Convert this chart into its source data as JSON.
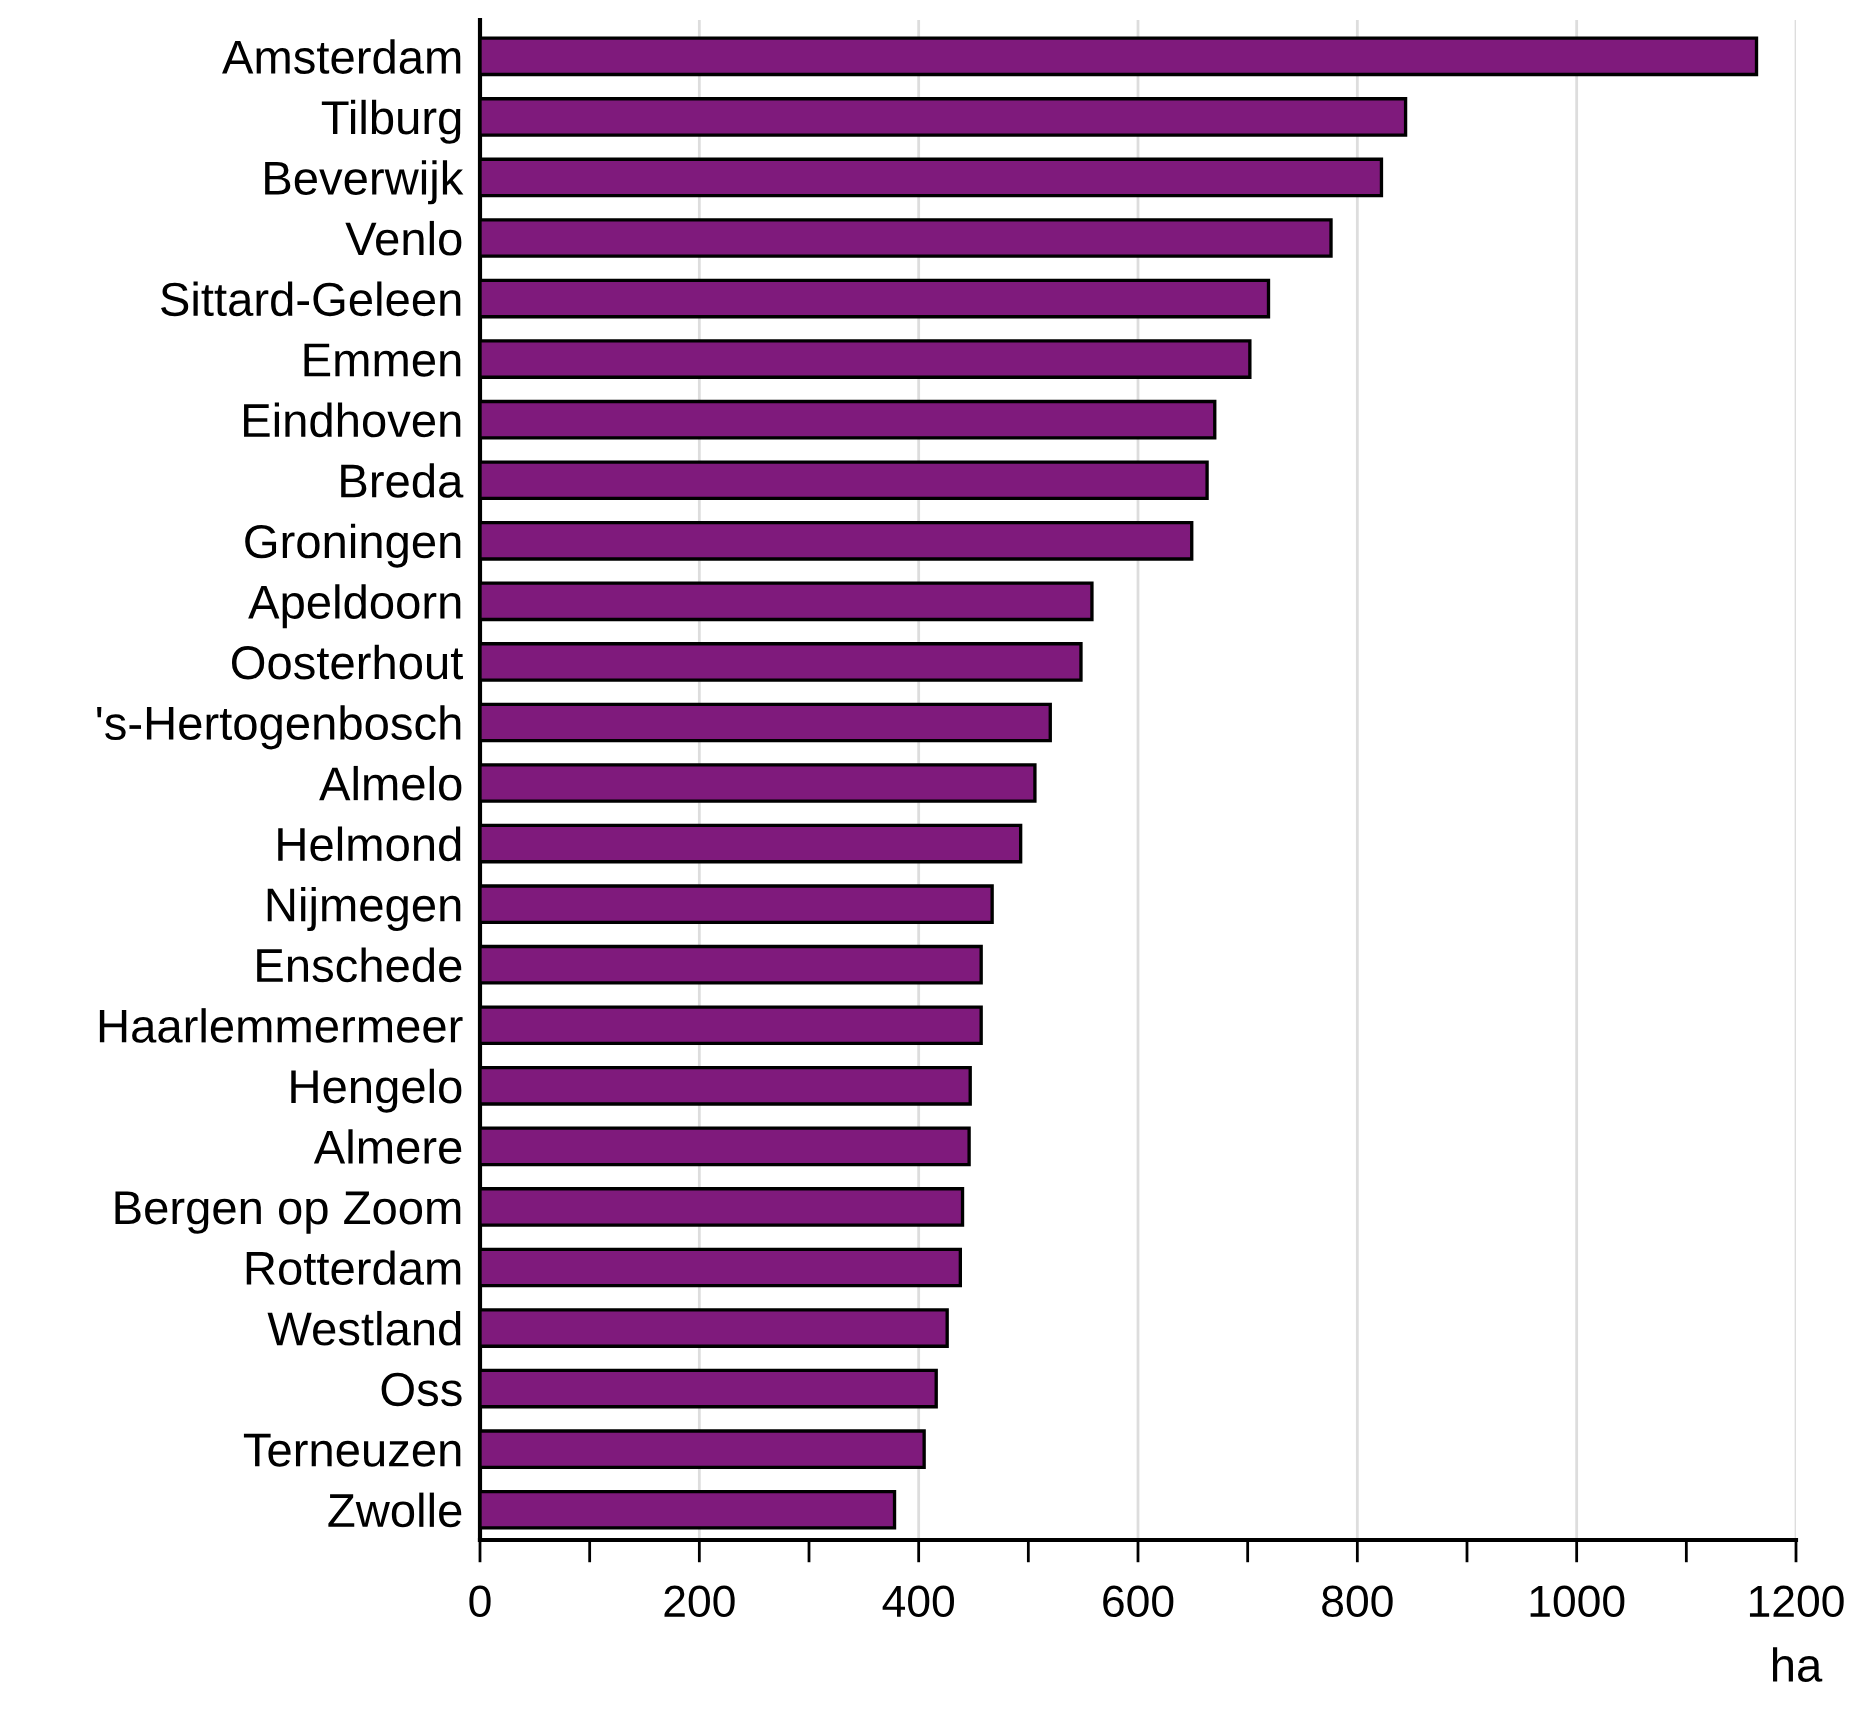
{
  "chart_data": {
    "type": "bar",
    "orientation": "horizontal",
    "xlabel": "ha",
    "categories": [
      "Amsterdam",
      "Tilburg",
      "Beverwijk",
      "Venlo",
      "Sittard-Geleen",
      "Emmen",
      "Eindhoven",
      "Breda",
      "Groningen",
      "Apeldoorn",
      "Oosterhout",
      "'s-Hertogenbosch",
      "Almelo",
      "Helmond",
      "Nijmegen",
      "Enschede",
      "Haarlemmermeer",
      "Hengelo",
      "Almere",
      "Bergen op Zoom",
      "Rotterdam",
      "Westland",
      "Oss",
      "Terneuzen",
      "Zwolle"
    ],
    "values": [
      1164,
      844,
      822,
      776,
      719,
      702,
      670,
      663,
      649,
      558,
      548,
      520,
      506,
      493,
      467,
      457,
      457,
      447,
      446,
      440,
      438,
      426,
      416,
      405,
      378
    ],
    "color": "#7f1a7c",
    "xlim": [
      0,
      1200
    ],
    "xticks": [
      0,
      {
        "value": 100,
        "label": null
      },
      200,
      {
        "value": 300,
        "label": null
      },
      400,
      {
        "value": 500,
        "label": null
      },
      600,
      {
        "value": 700,
        "label": null
      },
      800,
      {
        "value": 900,
        "label": null
      },
      1000,
      {
        "value": 1100,
        "label": null
      },
      1200
    ],
    "grid": "x"
  }
}
